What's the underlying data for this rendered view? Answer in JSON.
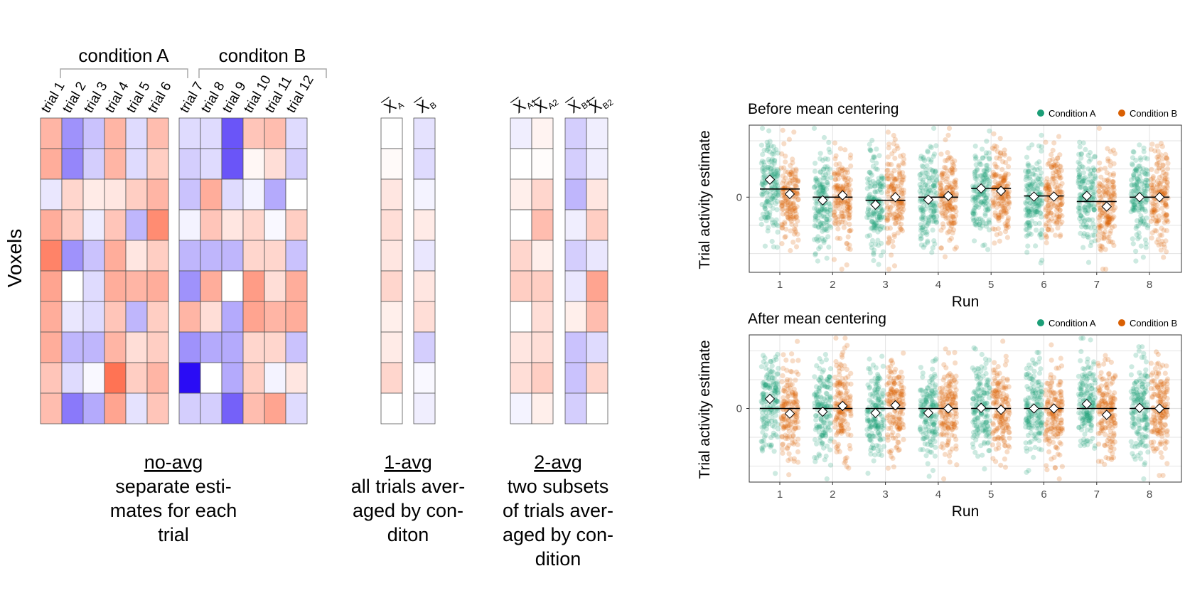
{
  "labels": {
    "condition_a": "condition A",
    "condition_b": "conditon B",
    "voxels": "Voxels",
    "trials": [
      "trial 1",
      "trial 2",
      "trial 3",
      "trial 4",
      "trial 5",
      "trial 6",
      "trial 7",
      "trial 8",
      "trial 9",
      "trial 10",
      "trial 11",
      "trial 12"
    ],
    "avg1_cols": [
      {
        "x": "X",
        "sub": "A"
      },
      {
        "x": "X",
        "sub": "B"
      }
    ],
    "avg2_cols": [
      {
        "x": "X",
        "sub": "A1"
      },
      {
        "x": "X",
        "sub": "A2"
      },
      {
        "x": "X",
        "sub": "B1"
      },
      {
        "x": "X",
        "sub": "B2"
      }
    ]
  },
  "captions": [
    {
      "title": "no-avg",
      "lines": [
        "separate esti-",
        "mates for each",
        "trial"
      ]
    },
    {
      "title": "1-avg",
      "lines": [
        "all trials aver-",
        "aged by con-",
        "diton"
      ]
    },
    {
      "title": "2-avg",
      "lines": [
        "two subsets",
        "of trials aver-",
        "aged by con-",
        "dition"
      ]
    }
  ],
  "colors": {
    "neg": "#2a0cf5",
    "pos": "#ff5a36",
    "cond_a": "#1b9e77",
    "cond_b": "#d95f02",
    "panel_border": "#333333",
    "grid": "#e3e3e3"
  },
  "heatmaps": {
    "no_avg_A": [
      [
        0.45,
        -0.45,
        -0.25,
        0.45,
        -0.15,
        0.4
      ],
      [
        0.5,
        -0.5,
        -0.2,
        0.45,
        -0.15,
        0.3
      ],
      [
        -0.1,
        0.25,
        0.12,
        0.15,
        0.3,
        0.45
      ],
      [
        0.5,
        0.3,
        -0.08,
        0.35,
        -0.3,
        0.7
      ],
      [
        0.75,
        -0.45,
        -0.25,
        0.5,
        0.15,
        0.3
      ],
      [
        0.55,
        0.0,
        -0.15,
        0.5,
        0.45,
        0.5
      ],
      [
        0.5,
        -0.1,
        -0.15,
        0.35,
        -0.3,
        0.3
      ],
      [
        0.5,
        -0.3,
        -0.3,
        0.45,
        0.2,
        0.3
      ],
      [
        0.35,
        -0.15,
        -0.03,
        0.85,
        0.3,
        0.45
      ],
      [
        0.4,
        -0.55,
        -0.35,
        0.55,
        -0.12,
        0.35
      ]
    ],
    "no_avg_B": [
      [
        -0.15,
        -0.15,
        -0.7,
        0.35,
        0.4,
        -0.15
      ],
      [
        -0.2,
        -0.15,
        -0.7,
        0.05,
        0.2,
        -0.2
      ],
      [
        -0.25,
        0.5,
        -0.15,
        -0.05,
        -0.35,
        0.0
      ],
      [
        -0.05,
        0.35,
        0.15,
        0.25,
        -0.03,
        0.3
      ],
      [
        -0.3,
        -0.3,
        -0.3,
        0.25,
        0.25,
        -0.25
      ],
      [
        -0.45,
        0.5,
        0.0,
        0.6,
        0.2,
        0.5
      ],
      [
        0.45,
        0.2,
        -0.35,
        0.55,
        0.45,
        0.5
      ],
      [
        -0.45,
        -0.35,
        -0.35,
        0.25,
        0.25,
        -0.25
      ],
      [
        -1.0,
        0.0,
        -0.35,
        0.3,
        -0.05,
        0.15
      ],
      [
        -0.2,
        -0.2,
        -0.65,
        0.4,
        0.55,
        -0.15
      ]
    ],
    "avg1": [
      [
        0.0,
        -0.12
      ],
      [
        0.03,
        -0.15
      ],
      [
        0.15,
        -0.05
      ],
      [
        0.2,
        0.12
      ],
      [
        0.15,
        -0.1
      ],
      [
        0.25,
        0.15
      ],
      [
        0.1,
        0.2
      ],
      [
        0.12,
        -0.2
      ],
      [
        0.25,
        -0.03
      ],
      [
        0.0,
        -0.07
      ]
    ],
    "avg2": [
      [
        -0.07,
        0.07,
        -0.2,
        -0.07
      ],
      [
        0.0,
        0.02,
        -0.2,
        -0.07
      ],
      [
        0.1,
        0.25,
        -0.3,
        0.15
      ],
      [
        0.0,
        0.4,
        -0.07,
        0.3
      ],
      [
        0.25,
        0.1,
        -0.2,
        -0.1
      ],
      [
        0.3,
        0.3,
        -0.1,
        0.55
      ],
      [
        0.0,
        0.2,
        0.1,
        0.4
      ],
      [
        0.15,
        0.2,
        -0.25,
        -0.15
      ],
      [
        0.2,
        0.3,
        -0.25,
        0.25
      ],
      [
        -0.05,
        0.1,
        -0.2,
        0.0
      ]
    ]
  },
  "chart_data": [
    {
      "type": "scatter",
      "title": "Before mean centering",
      "xlabel": "Run",
      "ylabel": "Trial activity estimate",
      "x_ticks": [
        "1",
        "2",
        "3",
        "4",
        "5",
        "6",
        "7",
        "8"
      ],
      "y_ticks": [
        "0"
      ],
      "ylim": [
        -1.2,
        1.15
      ],
      "legend": {
        "position": "top-right",
        "entries": [
          "Condition A",
          "Condition B"
        ]
      },
      "grid": true,
      "series": [
        {
          "name": "Condition A",
          "run_means": [
            0.28,
            -0.05,
            -0.12,
            -0.04,
            0.14,
            0.01,
            0.02,
            0.0
          ],
          "group_means": [
            0.13,
            0.0,
            -0.05,
            0.0,
            0.14,
            0.02,
            -0.07,
            0.0
          ]
        },
        {
          "name": "Condition B",
          "run_means": [
            0.05,
            0.03,
            0.0,
            0.02,
            0.1,
            0.01,
            -0.15,
            0.0
          ],
          "group_means": [
            0.13,
            0.0,
            -0.05,
            0.0,
            0.14,
            0.02,
            -0.07,
            0.0
          ]
        }
      ]
    },
    {
      "type": "scatter",
      "title": "After mean centering",
      "xlabel": "Run",
      "ylabel": "Trial activity estimate",
      "x_ticks": [
        "1",
        "2",
        "3",
        "4",
        "5",
        "6",
        "7",
        "8"
      ],
      "y_ticks": [
        "0"
      ],
      "ylim": [
        -1.15,
        1.15
      ],
      "legend": {
        "position": "top-right",
        "entries": [
          "Condition A",
          "Condition B"
        ]
      },
      "grid": true,
      "series": [
        {
          "name": "Condition A",
          "run_means": [
            0.15,
            -0.05,
            -0.07,
            -0.07,
            0.01,
            0.0,
            0.07,
            0.01
          ],
          "group_means": [
            0.0,
            0.0,
            0.0,
            0.0,
            0.0,
            0.0,
            0.0,
            0.0
          ]
        },
        {
          "name": "Condition B",
          "run_means": [
            -0.08,
            0.04,
            0.05,
            0.0,
            -0.02,
            0.0,
            -0.1,
            0.0
          ],
          "group_means": [
            0.0,
            0.0,
            0.0,
            0.0,
            0.0,
            0.0,
            0.0,
            0.0
          ]
        }
      ]
    }
  ]
}
